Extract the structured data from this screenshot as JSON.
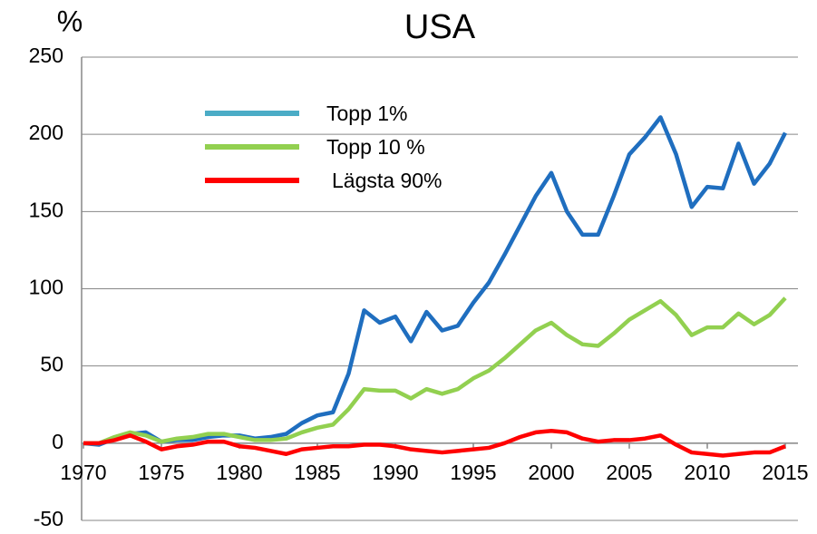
{
  "chart_data": {
    "type": "line",
    "title": "USA",
    "y_label": "%",
    "x": [
      1970,
      1971,
      1972,
      1973,
      1974,
      1975,
      1976,
      1977,
      1978,
      1979,
      1980,
      1981,
      1982,
      1983,
      1984,
      1985,
      1986,
      1987,
      1988,
      1989,
      1990,
      1991,
      1992,
      1993,
      1994,
      1995,
      1996,
      1997,
      1998,
      1999,
      2000,
      2001,
      2002,
      2003,
      2004,
      2005,
      2006,
      2007,
      2008,
      2009,
      2010,
      2011,
      2012,
      2013,
      2014,
      2015
    ],
    "series": [
      {
        "name": "Topp 1%",
        "color": "#1f6ebf",
        "legend_color": "#4bacc6",
        "values": [
          0,
          -1,
          3,
          6,
          7,
          1,
          2,
          2,
          4,
          5,
          5,
          3,
          4,
          6,
          13,
          18,
          20,
          45,
          86,
          78,
          82,
          66,
          85,
          73,
          76,
          91,
          104,
          122,
          141,
          160,
          175,
          150,
          135,
          135,
          160,
          187,
          198,
          211,
          187,
          153,
          166,
          165,
          194,
          168,
          181,
          201
        ]
      },
      {
        "name": "Topp 10 %",
        "color": "#92d050",
        "legend_color": "#92d050",
        "values": [
          0,
          0,
          4,
          7,
          5,
          1,
          3,
          4,
          6,
          6,
          4,
          2,
          2,
          3,
          7,
          10,
          12,
          22,
          35,
          34,
          34,
          29,
          35,
          32,
          35,
          42,
          47,
          55,
          64,
          73,
          78,
          70,
          64,
          63,
          71,
          80,
          86,
          92,
          83,
          70,
          75,
          75,
          84,
          77,
          83,
          94
        ]
      },
      {
        "name": "Lägsta 90%",
        "color": "#ff0000",
        "legend_color": "#ff0000",
        "values": [
          0,
          0,
          2,
          5,
          1,
          -4,
          -2,
          -1,
          1,
          1,
          -2,
          -3,
          -5,
          -7,
          -4,
          -3,
          -2,
          -2,
          -1,
          -1,
          -2,
          -4,
          -5,
          -6,
          -5,
          -4,
          -3,
          0,
          4,
          7,
          8,
          7,
          3,
          1,
          2,
          2,
          3,
          5,
          -1,
          -6,
          -7,
          -8,
          -7,
          -6,
          -6,
          -2
        ]
      }
    ],
    "xlim": [
      1970,
      2015
    ],
    "xticks": [
      1970,
      1975,
      1980,
      1985,
      1990,
      1995,
      2000,
      2005,
      2010,
      2015
    ],
    "ylim": [
      -50,
      250
    ],
    "yticks": [
      -50,
      0,
      50,
      100,
      150,
      200,
      250
    ],
    "grid": true
  }
}
